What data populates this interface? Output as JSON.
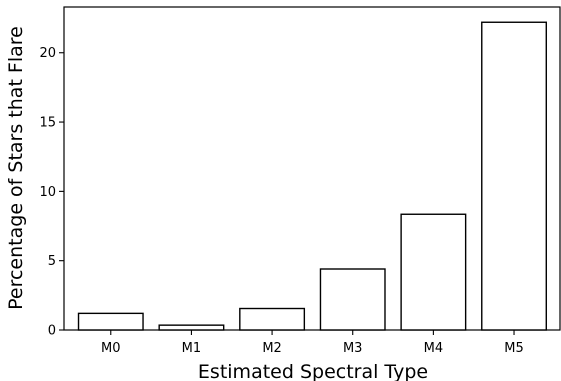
{
  "chart_data": {
    "type": "bar",
    "title": "",
    "xlabel": "Estimated Spectral Type",
    "ylabel": "Percentage of Stars that Flare",
    "categories": [
      "M0",
      "M1",
      "M2",
      "M3",
      "M4",
      "M5"
    ],
    "values": [
      1.2,
      0.35,
      1.55,
      4.4,
      8.35,
      22.2
    ],
    "ylim": [
      0,
      23.3
    ],
    "yticks": [
      0,
      5,
      10,
      15,
      20
    ],
    "ytick_labels": [
      "0",
      "5",
      "10",
      "15",
      "20"
    ],
    "grid": false,
    "legend": "none",
    "colors": {
      "bar_fill": "#ffffff",
      "bar_edge": "#000000",
      "axis": "#000000",
      "background": "#ffffff"
    }
  }
}
